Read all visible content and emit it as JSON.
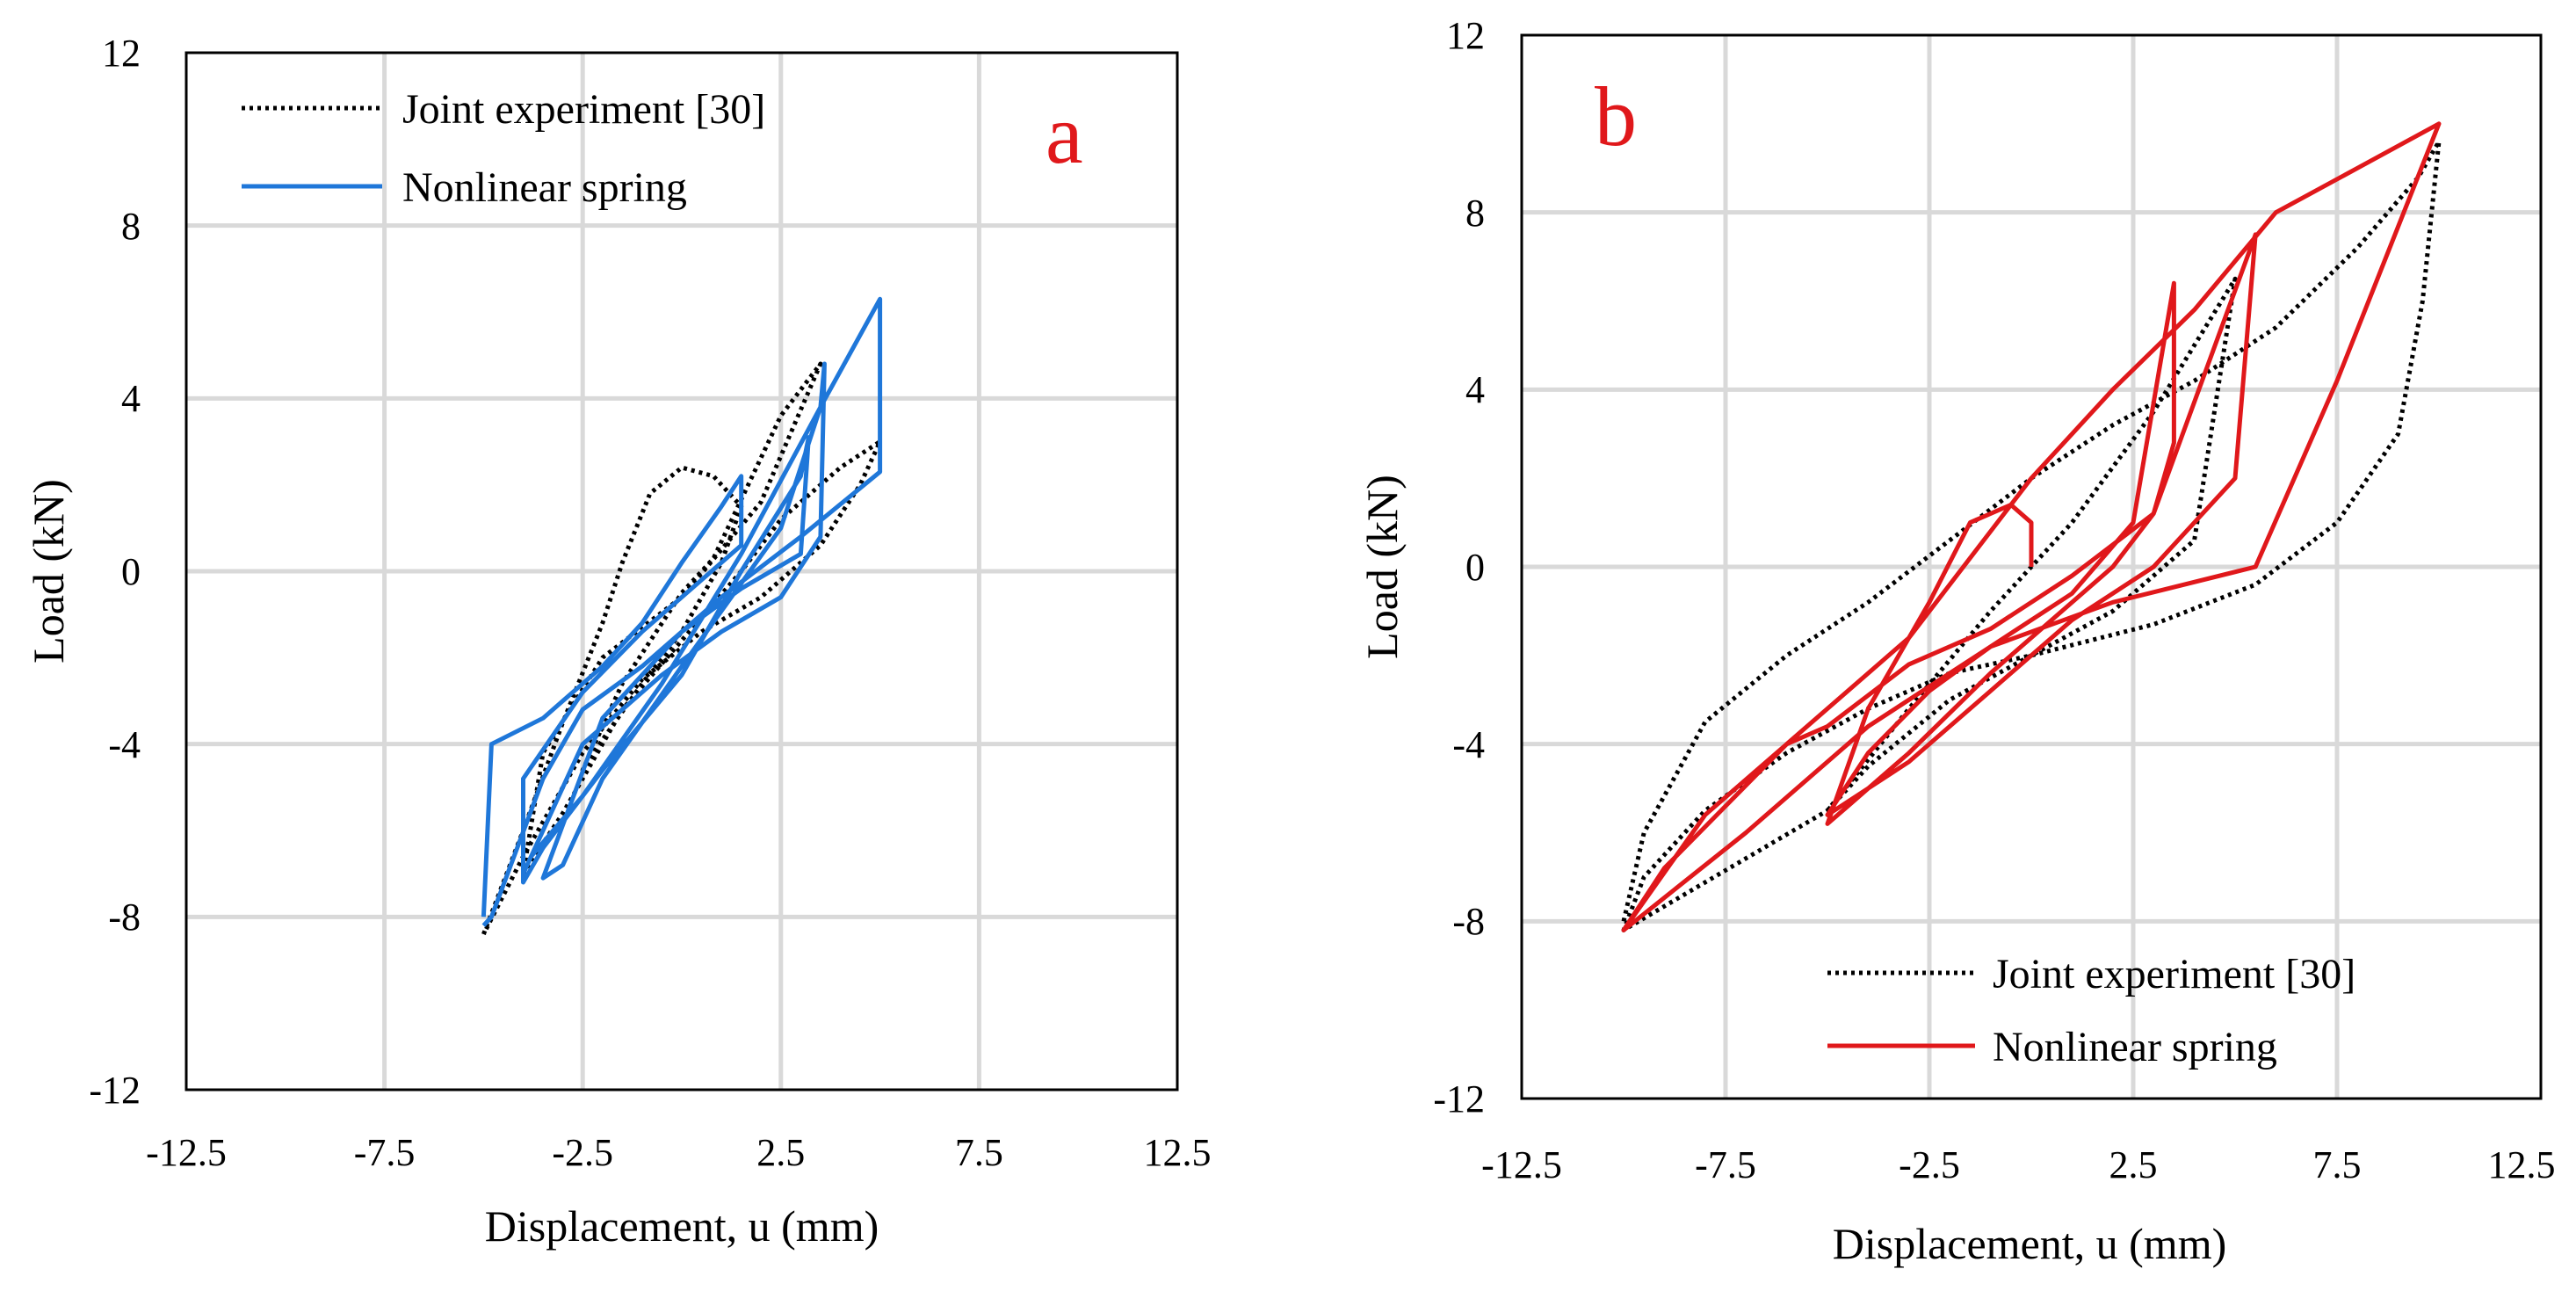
{
  "chart_data": [
    {
      "type": "line",
      "panel_label": "a",
      "xlabel": "Displacement, u (mm)",
      "ylabel": "Load (kN)",
      "xlim": [
        -12.5,
        12.5
      ],
      "ylim": [
        -12,
        12
      ],
      "xticks": [
        "-12.5",
        "-7.5",
        "-2.5",
        "2.5",
        "7.5",
        "12.5"
      ],
      "yticks": [
        "12",
        "8",
        "4",
        "0",
        "-4",
        "-8",
        "-12"
      ],
      "grid": true,
      "legend_position": "top-left",
      "colors": {
        "experiment": "#000000",
        "model": "#1f77d9",
        "label": "#e0181b"
      },
      "series": [
        {
          "name": "Joint experiment [30]",
          "style": "dotted",
          "x": [
            -5.0,
            -4.0,
            -3.0,
            -2.0,
            -1.5,
            -0.8,
            0.0,
            0.8,
            1.5,
            1.0,
            0.0,
            -1.0,
            -2.0,
            -2.5,
            -1.5,
            0.0,
            0.8,
            2.5,
            3.5,
            2.0,
            0.0,
            -2.0,
            -3.5,
            -4.0,
            -3.0,
            -1.5,
            0.0,
            1.5,
            2.5,
            4.0,
            5.0,
            4.5,
            3.5,
            2.0,
            0.5,
            -1.0,
            -2.5,
            -4.0,
            -5.0
          ],
          "y": [
            -8.4,
            -6.0,
            -3.5,
            -1.2,
            0.2,
            1.8,
            2.4,
            2.2,
            1.5,
            0.2,
            -1.4,
            -2.6,
            -3.9,
            -4.6,
            -2.6,
            -0.5,
            0.3,
            3.6,
            4.8,
            1.6,
            -0.6,
            -2.0,
            -4.2,
            -7.0,
            -5.6,
            -3.2,
            -1.6,
            0.0,
            1.2,
            2.4,
            3.0,
            2.0,
            0.6,
            -0.6,
            -1.4,
            -2.5,
            -4.2,
            -6.6,
            -8.4
          ]
        },
        {
          "name": "Nonlinear spring",
          "style": "solid",
          "x": [
            -5.0,
            -4.8,
            -3.5,
            -2.0,
            -1.0,
            0.0,
            1.0,
            1.5,
            1.5,
            0.0,
            -1.0,
            -2.5,
            -4.0,
            -4.0,
            -3.5,
            -2.0,
            0.0,
            1.5,
            3.0,
            3.2,
            3.0,
            1.5,
            0.0,
            -2.0,
            -3.5,
            -3.0,
            -2.0,
            0.0,
            2.5,
            3.5,
            3.6,
            3.5,
            2.5,
            1.0,
            -0.5,
            -2.5,
            -4.0,
            -3.8,
            -2.5,
            -0.5,
            1.5,
            3.5,
            5.0,
            5.0,
            4.6,
            3.0,
            1.0,
            -1.0,
            -2.5,
            -3.5,
            -4.8,
            -5.0
          ],
          "y": [
            -8.0,
            -4.0,
            -3.4,
            -2.2,
            -1.2,
            0.2,
            1.5,
            2.2,
            0.6,
            -0.6,
            -1.4,
            -2.8,
            -4.8,
            -7.2,
            -6.4,
            -4.6,
            -2.4,
            0.0,
            2.2,
            3.1,
            0.4,
            -0.4,
            -1.4,
            -3.4,
            -7.1,
            -6.8,
            -4.8,
            -2.2,
            1.0,
            3.8,
            4.8,
            0.8,
            -0.6,
            -1.4,
            -2.4,
            -4.0,
            -7.0,
            -6.6,
            -5.2,
            -2.6,
            0.4,
            3.8,
            6.3,
            2.3,
            2.0,
            0.8,
            -0.6,
            -2.2,
            -3.2,
            -4.8,
            -8.0,
            -8.2
          ]
        }
      ]
    },
    {
      "type": "line",
      "panel_label": "b",
      "xlabel": "Displacement, u (mm)",
      "ylabel": "Load (kN)",
      "xlim": [
        -12.5,
        12.5
      ],
      "ylim": [
        -12,
        12
      ],
      "xticks": [
        "-12.5",
        "-7.5",
        "-2.5",
        "2.5",
        "7.5",
        "12.5"
      ],
      "yticks": [
        "12",
        "8",
        "4",
        "0",
        "-4",
        "-8",
        "-12"
      ],
      "grid": true,
      "legend_position": "bottom-right",
      "colors": {
        "experiment": "#000000",
        "model": "#e0181b",
        "label": "#e0181b"
      },
      "series": [
        {
          "name": "Joint experiment [30]",
          "style": "dotted",
          "x": [
            -10.0,
            -9.5,
            -8.0,
            -6.0,
            -4.0,
            -2.0,
            0.0,
            2.0,
            4.0,
            6.0,
            8.0,
            9.5,
            10.0,
            9.6,
            9.0,
            7.5,
            5.5,
            3.0,
            0.0,
            -2.0,
            -4.0,
            -6.0,
            -8.0,
            -9.5,
            -10.0,
            -5.0,
            -3.0,
            -1.0,
            1.0,
            3.0,
            5.0,
            4.0,
            2.0,
            0.0,
            -2.0,
            -4.0,
            -5.0
          ],
          "y": [
            -8.0,
            -6.0,
            -3.5,
            -2.0,
            -0.8,
            0.6,
            2.0,
            3.2,
            4.2,
            5.4,
            7.2,
            8.8,
            9.6,
            6.0,
            3.0,
            1.0,
            -0.4,
            -1.3,
            -2.0,
            -2.4,
            -3.2,
            -4.2,
            -5.5,
            -7.0,
            -8.2,
            -5.5,
            -3.2,
            -1.0,
            1.0,
            3.5,
            6.5,
            0.6,
            -1.0,
            -2.0,
            -3.0,
            -4.5,
            -5.5
          ]
        },
        {
          "name": "Nonlinear spring",
          "style": "solid",
          "x": [
            0.0,
            0.0,
            -0.5,
            -1.5,
            -2.5,
            -4.0,
            -5.0,
            -4.5,
            -3.0,
            -1.0,
            0.5,
            2.0,
            3.0,
            3.5,
            3.5,
            2.5,
            1.0,
            -1.0,
            -2.5,
            -4.0,
            -5.0,
            -3.0,
            -1.0,
            1.0,
            3.0,
            5.0,
            5.2,
            5.5,
            3.0,
            1.0,
            -1.0,
            -3.0,
            -5.0,
            -6.0,
            -8.0,
            -10.0,
            -9.0,
            -6.0,
            -3.0,
            0.0,
            2.0,
            4.0,
            6.0,
            8.0,
            10.0,
            7.5,
            5.5,
            2.0,
            -1.0,
            -4.0,
            -7.0,
            -10.0
          ],
          "y": [
            0.0,
            1.0,
            1.4,
            1.0,
            -0.8,
            -3.2,
            -5.8,
            -5.4,
            -4.2,
            -2.4,
            -1.2,
            0.0,
            1.2,
            2.8,
            6.4,
            1.0,
            -0.6,
            -1.8,
            -2.8,
            -4.2,
            -5.6,
            -4.4,
            -2.8,
            -1.2,
            0.0,
            2.0,
            4.2,
            7.5,
            1.2,
            -0.2,
            -1.4,
            -2.2,
            -3.6,
            -4.0,
            -5.6,
            -8.2,
            -6.8,
            -4.0,
            -1.6,
            2.0,
            4.0,
            5.8,
            8.0,
            9.0,
            10.0,
            4.2,
            0.0,
            -0.8,
            -1.8,
            -3.6,
            -6.0,
            -8.2
          ]
        }
      ]
    }
  ]
}
